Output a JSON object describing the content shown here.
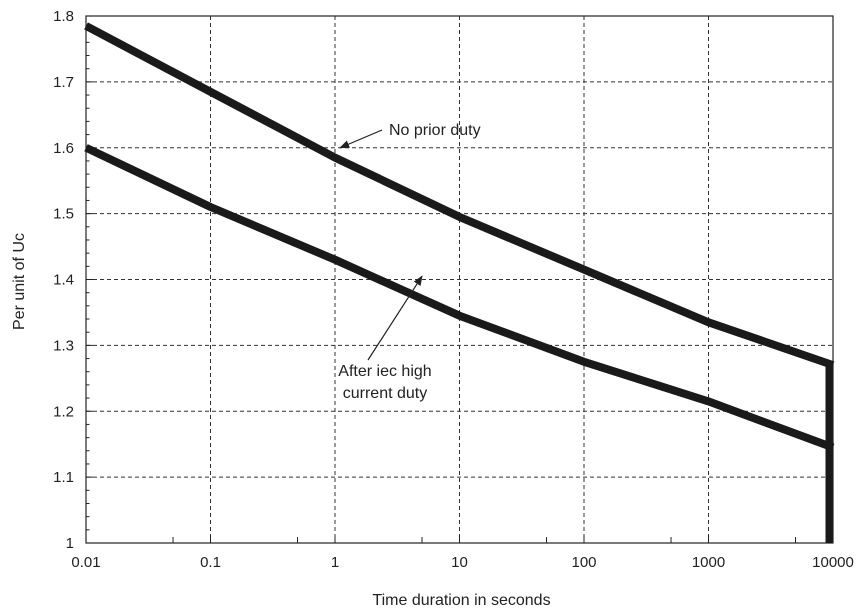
{
  "chart_data": {
    "type": "line",
    "xlabel": "Time duration in seconds",
    "ylabel": "Per unit of Uc",
    "x_scale": "log",
    "xlim": [
      0.01,
      10000
    ],
    "ylim": [
      1.0,
      1.8
    ],
    "x_ticks": [
      {
        "value": 0.01,
        "label": "0.01"
      },
      {
        "value": 0.1,
        "label": "0.1"
      },
      {
        "value": 1,
        "label": "1"
      },
      {
        "value": 10,
        "label": "10"
      },
      {
        "value": 100,
        "label": "100"
      },
      {
        "value": 1000,
        "label": "1000"
      },
      {
        "value": 10000,
        "label": "10000"
      }
    ],
    "y_ticks": [
      {
        "value": 1.0,
        "label": "1"
      },
      {
        "value": 1.1,
        "label": "1.1"
      },
      {
        "value": 1.2,
        "label": "1.2"
      },
      {
        "value": 1.3,
        "label": "1.3"
      },
      {
        "value": 1.4,
        "label": "1.4"
      },
      {
        "value": 1.5,
        "label": "1.5"
      },
      {
        "value": 1.6,
        "label": "1.6"
      },
      {
        "value": 1.7,
        "label": "1.7"
      },
      {
        "value": 1.8,
        "label": "1.8"
      }
    ],
    "grid": true,
    "line_color": "#1a1a1a",
    "series": [
      {
        "x": [
          0.01,
          0.1,
          1,
          10,
          100,
          1000,
          10000
        ],
        "y": [
          1.785,
          1.685,
          1.585,
          1.495,
          1.415,
          1.335,
          1.27
        ]
      },
      {
        "x": [
          0.01,
          0.1,
          1,
          10,
          100,
          1000,
          10000
        ],
        "y": [
          1.6,
          1.51,
          1.43,
          1.345,
          1.275,
          1.215,
          1.145
        ]
      }
    ],
    "cutoff": {
      "x": 10000,
      "y_from": 1.27,
      "y_to": 1.0
    },
    "annotations": [
      {
        "lines": [
          "No prior duty"
        ],
        "arrow_to": {
          "x": 1.1,
          "y": 1.6
        }
      },
      {
        "lines": [
          "After iec high",
          "current duty"
        ],
        "arrow_to": {
          "x": 5,
          "y": 1.405
        }
      }
    ]
  }
}
